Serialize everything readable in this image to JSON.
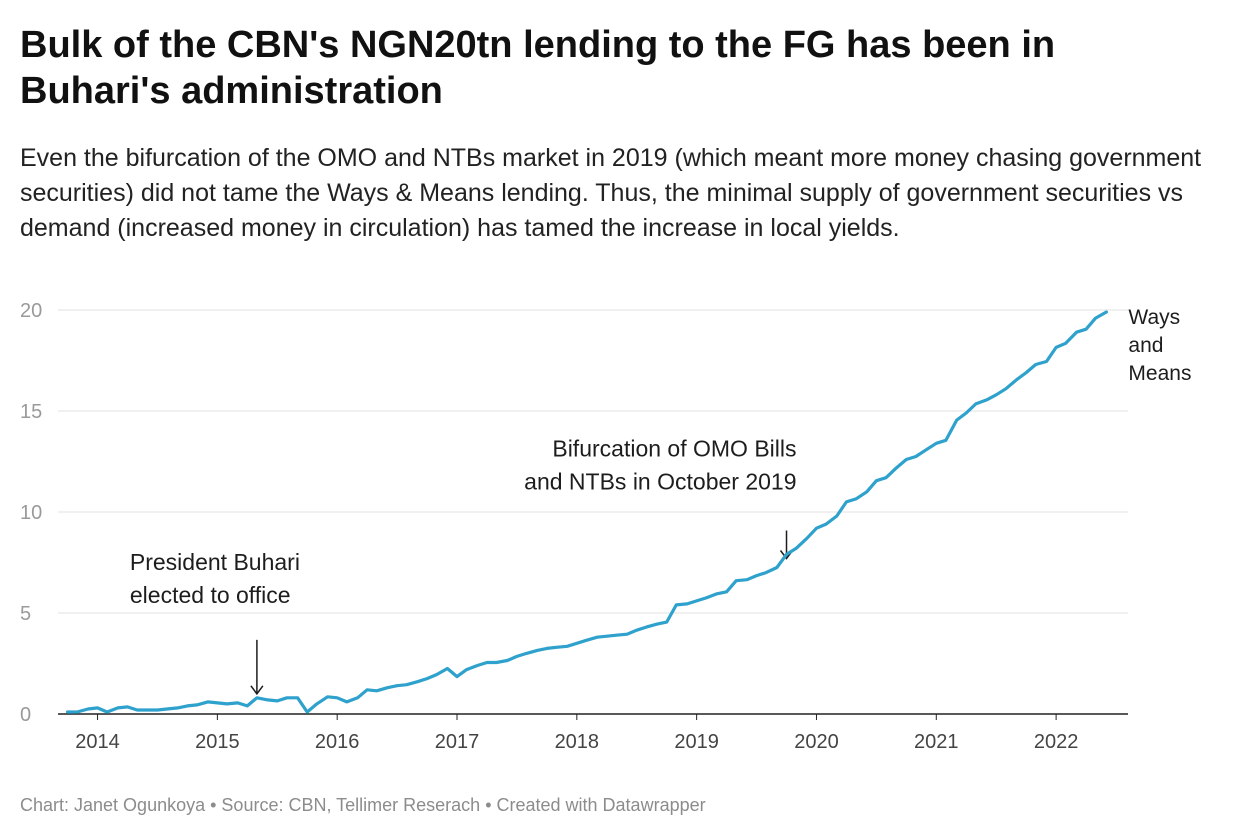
{
  "title": "Bulk of the CBN's NGN20tn lending to the FG has been in Buhari's administration",
  "subtitle": "Even the bifurcation of the OMO and NTBs market in 2019 (which meant more money chasing government securities) did not tame the Ways & Means lending. Thus, the minimal supply of government securities vs demand (increased money in circulation) has tamed the increase in local yields.",
  "footer": {
    "chart_by": "Chart: Janet Ogunkoya",
    "sep1": " • ",
    "source": "Source: CBN, Tellimer Reserach",
    "sep2": " • ",
    "created": "Created with Datawrapper"
  },
  "colors": {
    "line": "#2ea1cc",
    "grid": "#e2e2e2",
    "axis": "#222222",
    "annotation": "#1d1d1d"
  },
  "chart_data": {
    "type": "line",
    "title": "",
    "xlabel": "",
    "ylabel": "",
    "xlim": [
      2013.67,
      2022.6
    ],
    "ylim": [
      0,
      20
    ],
    "yticks": [
      0,
      5,
      10,
      15,
      20
    ],
    "xticks": [
      2014,
      2015,
      2016,
      2017,
      2018,
      2019,
      2020,
      2021,
      2022
    ],
    "grid": true,
    "series": [
      {
        "name": "Ways and Means",
        "name_lines": [
          "Ways",
          "and",
          "Means"
        ],
        "x": [
          2013.75,
          2013.83,
          2013.92,
          2014.0,
          2014.08,
          2014.17,
          2014.25,
          2014.33,
          2014.42,
          2014.5,
          2014.58,
          2014.67,
          2014.75,
          2014.83,
          2014.92,
          2015.0,
          2015.08,
          2015.17,
          2015.25,
          2015.33,
          2015.42,
          2015.5,
          2015.58,
          2015.67,
          2015.75,
          2015.83,
          2015.92,
          2016.0,
          2016.08,
          2016.17,
          2016.25,
          2016.33,
          2016.42,
          2016.5,
          2016.58,
          2016.67,
          2016.75,
          2016.83,
          2016.92,
          2017.0,
          2017.08,
          2017.17,
          2017.25,
          2017.33,
          2017.42,
          2017.5,
          2017.58,
          2017.67,
          2017.75,
          2017.83,
          2017.92,
          2018.0,
          2018.08,
          2018.17,
          2018.25,
          2018.33,
          2018.42,
          2018.5,
          2018.58,
          2018.67,
          2018.75,
          2018.83,
          2018.92,
          2019.0,
          2019.08,
          2019.17,
          2019.25,
          2019.33,
          2019.42,
          2019.5,
          2019.58,
          2019.67,
          2019.75,
          2019.83,
          2019.92,
          2020.0,
          2020.08,
          2020.17,
          2020.25,
          2020.33,
          2020.42,
          2020.5,
          2020.58,
          2020.67,
          2020.75,
          2020.83,
          2020.92,
          2021.0,
          2021.08,
          2021.17,
          2021.25,
          2021.33,
          2021.42,
          2021.5,
          2021.58,
          2021.67,
          2021.75,
          2021.83,
          2021.92,
          2022.0,
          2022.08,
          2022.17,
          2022.25,
          2022.33,
          2022.42
        ],
        "values": [
          0.1,
          0.1,
          0.25,
          0.3,
          0.1,
          0.3,
          0.35,
          0.2,
          0.2,
          0.2,
          0.25,
          0.3,
          0.4,
          0.45,
          0.6,
          0.55,
          0.5,
          0.55,
          0.4,
          0.8,
          0.7,
          0.65,
          0.8,
          0.8,
          0.1,
          0.5,
          0.85,
          0.8,
          0.6,
          0.8,
          1.2,
          1.15,
          1.3,
          1.4,
          1.45,
          1.6,
          1.75,
          1.95,
          2.25,
          1.85,
          2.2,
          2.4,
          2.55,
          2.55,
          2.65,
          2.85,
          3.0,
          3.15,
          3.25,
          3.3,
          3.35,
          3.5,
          3.65,
          3.8,
          3.85,
          3.9,
          3.95,
          4.15,
          4.3,
          4.45,
          4.55,
          5.4,
          5.45,
          5.6,
          5.75,
          5.95,
          6.05,
          6.6,
          6.65,
          6.85,
          7.0,
          7.25,
          7.9,
          8.2,
          8.7,
          9.2,
          9.4,
          9.8,
          10.5,
          10.65,
          11.0,
          11.55,
          11.7,
          12.2,
          12.6,
          12.75,
          13.1,
          13.4,
          13.55,
          14.55,
          14.9,
          15.35,
          15.55,
          15.8,
          16.1,
          16.55,
          16.9,
          17.3,
          17.45,
          18.15,
          18.35,
          18.9,
          19.05,
          19.6,
          19.9
        ]
      }
    ],
    "annotations": [
      {
        "lines": [
          "President Buhari",
          "elected to office"
        ],
        "x": 2015.33,
        "y": 0.8
      },
      {
        "lines": [
          "Bifurcation of OMO Bills",
          "and NTBs in October 2019"
        ],
        "x": 2019.75,
        "y": 7.5
      }
    ]
  }
}
